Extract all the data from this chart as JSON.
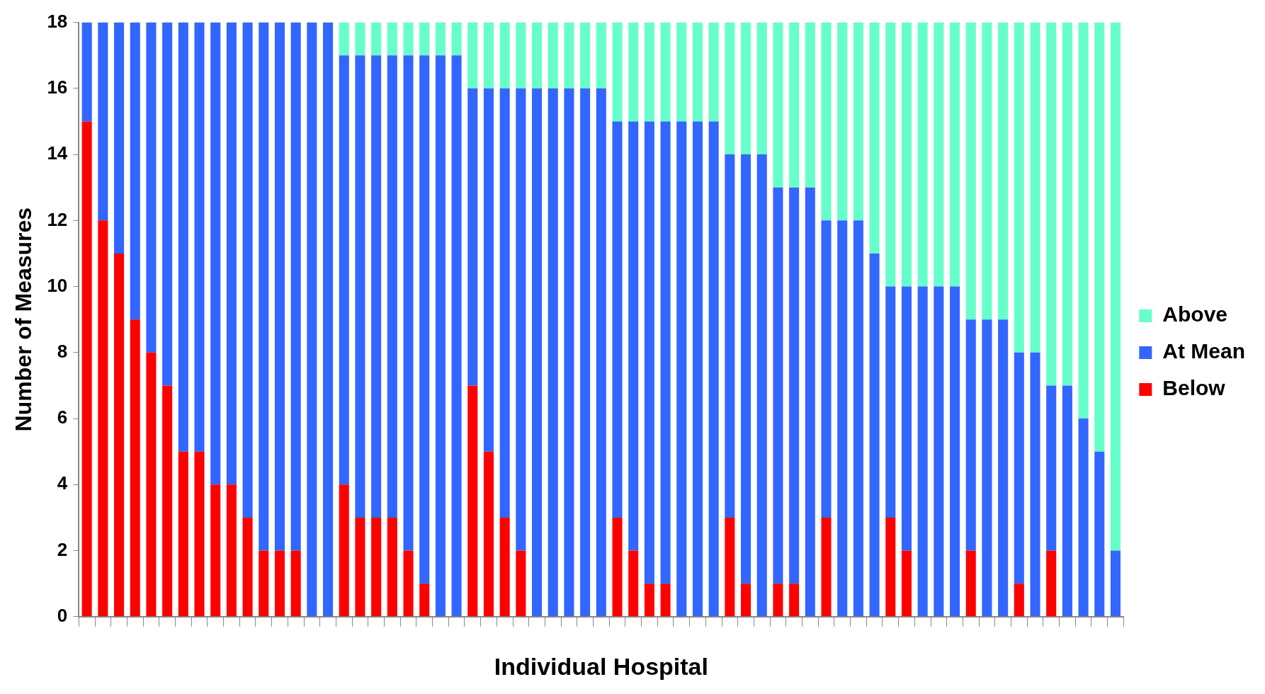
{
  "chart_data": {
    "type": "bar",
    "stacked": true,
    "xlabel": "Individual Hospital",
    "ylabel": "Number of Measures",
    "ylim": [
      0,
      18
    ],
    "yticks": [
      0,
      2,
      4,
      6,
      8,
      10,
      12,
      14,
      16,
      18
    ],
    "grid": false,
    "legend": "right",
    "categories": [
      null,
      null,
      null,
      null,
      null,
      null,
      null,
      null,
      null,
      null,
      null,
      null,
      null,
      null,
      null,
      null,
      null,
      null,
      null,
      null,
      null,
      null,
      null,
      null,
      null,
      null,
      null,
      null,
      null,
      null,
      null,
      null,
      null,
      null,
      null,
      null,
      null,
      null,
      null,
      null,
      null,
      null,
      null,
      null,
      null,
      null,
      null,
      null,
      null,
      null,
      null,
      null,
      null,
      null,
      null,
      null,
      null,
      null,
      null,
      null,
      null,
      null,
      null,
      null,
      null
    ],
    "series": [
      {
        "name": "Below",
        "color": "#ff0000",
        "values": [
          15,
          12,
          11,
          9,
          8,
          7,
          5,
          5,
          4,
          4,
          3,
          2,
          2,
          2,
          0,
          0,
          4,
          3,
          3,
          3,
          2,
          1,
          0,
          0,
          7,
          5,
          3,
          2,
          0,
          0,
          0,
          0,
          0,
          3,
          2,
          1,
          1,
          0,
          0,
          0,
          3,
          1,
          0,
          1,
          1,
          0,
          3,
          0,
          0,
          0,
          3,
          2,
          0,
          0,
          0,
          2,
          0,
          0,
          1,
          0,
          2,
          0,
          0,
          0,
          0
        ]
      },
      {
        "name": "At Mean",
        "color": "#3366ff",
        "values": [
          3,
          6,
          7,
          9,
          10,
          11,
          13,
          13,
          14,
          14,
          15,
          16,
          16,
          16,
          18,
          18,
          13,
          14,
          14,
          14,
          15,
          16,
          17,
          17,
          9,
          11,
          13,
          14,
          16,
          16,
          16,
          16,
          16,
          12,
          13,
          14,
          14,
          15,
          15,
          15,
          11,
          13,
          14,
          12,
          12,
          13,
          9,
          12,
          12,
          11,
          7,
          8,
          10,
          10,
          10,
          7,
          9,
          9,
          7,
          8,
          5,
          7,
          6,
          5,
          2
        ]
      },
      {
        "name": "Above",
        "color": "#66ffcc",
        "values": [
          0,
          0,
          0,
          0,
          0,
          0,
          0,
          0,
          0,
          0,
          0,
          0,
          0,
          0,
          0,
          0,
          1,
          1,
          1,
          1,
          1,
          1,
          1,
          1,
          2,
          2,
          2,
          2,
          2,
          2,
          2,
          2,
          2,
          3,
          3,
          3,
          3,
          3,
          3,
          3,
          4,
          4,
          4,
          5,
          5,
          5,
          6,
          6,
          6,
          7,
          8,
          8,
          8,
          8,
          8,
          9,
          9,
          9,
          10,
          10,
          11,
          11,
          12,
          13,
          16
        ]
      }
    ]
  }
}
